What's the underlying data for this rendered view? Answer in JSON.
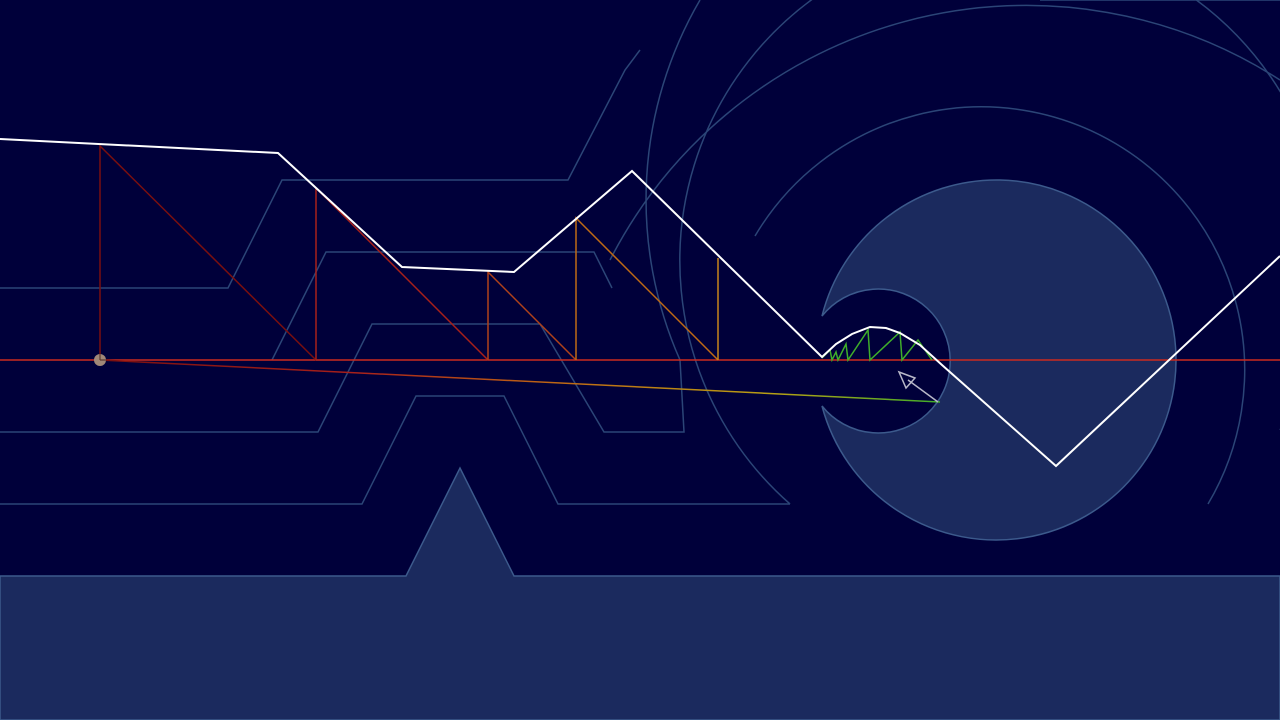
{
  "scene": {
    "background_color": "#00003a",
    "outline_color": "#2b4577",
    "terrain_fill": "#1b2a5e",
    "terrain_edge": "#3c5a8c",
    "ray_color": "#ffffff",
    "baseline_color": "#cc2a1e",
    "gradient_colors": [
      "#7a0f0f",
      "#b0241a",
      "#c85a12",
      "#c8861a",
      "#b89a14",
      "#3fae2a"
    ],
    "origin_marker": "#a08878",
    "arrow_color": "#b8b8c8"
  }
}
